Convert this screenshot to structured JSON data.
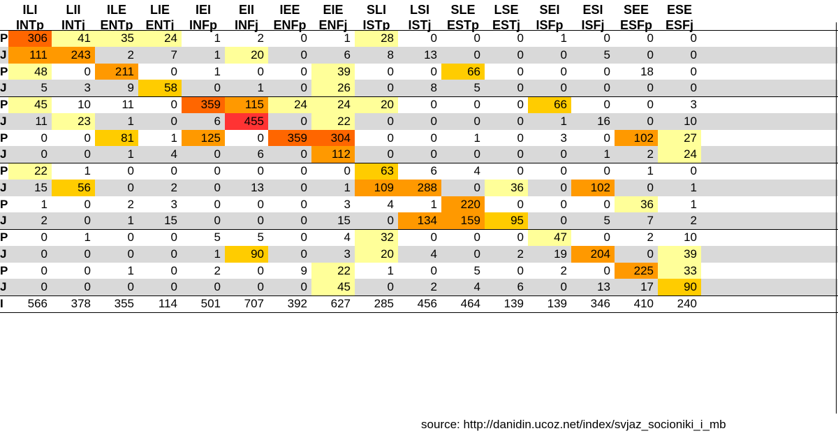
{
  "chart_data": {
    "type": "heatmap",
    "title": "",
    "columns": [
      {
        "code": "ILI",
        "type": "INTp"
      },
      {
        "code": "LII",
        "type": "INTj"
      },
      {
        "code": "ILE",
        "type": "ENTp"
      },
      {
        "code": "LIE",
        "type": "ENTj"
      },
      {
        "code": "IEI",
        "type": "INFp"
      },
      {
        "code": "EII",
        "type": "INFj"
      },
      {
        "code": "IEE",
        "type": "ENFp"
      },
      {
        "code": "EIE",
        "type": "ENFj"
      },
      {
        "code": "SLI",
        "type": "ISTp"
      },
      {
        "code": "LSI",
        "type": "ISTj"
      },
      {
        "code": "SLE",
        "type": "ESTp"
      },
      {
        "code": "LSE",
        "type": "ESTj"
      },
      {
        "code": "SEI",
        "type": "ISFp"
      },
      {
        "code": "ESI",
        "type": "ISFj"
      },
      {
        "code": "SEE",
        "type": "ESFp"
      },
      {
        "code": "ESE",
        "type": "ESFj"
      }
    ],
    "rows": [
      {
        "label": "P",
        "values": [
          306,
          41,
          35,
          24,
          1,
          2,
          0,
          1,
          28,
          0,
          0,
          0,
          1,
          0,
          0,
          0
        ]
      },
      {
        "label": "J",
        "values": [
          111,
          243,
          2,
          7,
          1,
          20,
          0,
          6,
          8,
          13,
          0,
          0,
          0,
          5,
          0,
          0
        ]
      },
      {
        "label": "P",
        "values": [
          48,
          0,
          211,
          0,
          1,
          0,
          0,
          39,
          0,
          0,
          66,
          0,
          0,
          0,
          18,
          0
        ]
      },
      {
        "label": "J",
        "values": [
          5,
          3,
          9,
          58,
          0,
          1,
          0,
          26,
          0,
          8,
          5,
          0,
          0,
          0,
          0,
          0
        ]
      },
      {
        "label": "P",
        "values": [
          45,
          10,
          11,
          0,
          359,
          115,
          24,
          24,
          20,
          0,
          0,
          0,
          66,
          0,
          0,
          3
        ]
      },
      {
        "label": "J",
        "values": [
          11,
          23,
          1,
          0,
          6,
          455,
          0,
          22,
          0,
          0,
          0,
          0,
          1,
          16,
          0,
          10
        ]
      },
      {
        "label": "P",
        "values": [
          0,
          0,
          81,
          1,
          125,
          0,
          359,
          304,
          0,
          0,
          1,
          0,
          3,
          0,
          102,
          27
        ]
      },
      {
        "label": "J",
        "values": [
          0,
          0,
          1,
          4,
          0,
          6,
          0,
          112,
          0,
          0,
          0,
          0,
          0,
          1,
          2,
          24
        ]
      },
      {
        "label": "P",
        "values": [
          22,
          1,
          0,
          0,
          0,
          0,
          0,
          0,
          63,
          6,
          4,
          0,
          0,
          0,
          1,
          0
        ]
      },
      {
        "label": "J",
        "values": [
          15,
          56,
          0,
          2,
          0,
          13,
          0,
          1,
          109,
          288,
          0,
          36,
          0,
          102,
          0,
          1
        ]
      },
      {
        "label": "P",
        "values": [
          1,
          0,
          2,
          3,
          0,
          0,
          0,
          3,
          4,
          1,
          220,
          0,
          0,
          0,
          36,
          1
        ]
      },
      {
        "label": "J",
        "values": [
          2,
          0,
          1,
          15,
          0,
          0,
          0,
          15,
          0,
          134,
          159,
          95,
          0,
          5,
          7,
          2
        ]
      },
      {
        "label": "P",
        "values": [
          0,
          1,
          0,
          0,
          5,
          5,
          0,
          4,
          32,
          0,
          0,
          0,
          47,
          0,
          2,
          10
        ]
      },
      {
        "label": "J",
        "values": [
          0,
          0,
          0,
          0,
          1,
          90,
          0,
          3,
          20,
          4,
          0,
          2,
          19,
          204,
          0,
          39
        ]
      },
      {
        "label": "P",
        "values": [
          0,
          0,
          1,
          0,
          2,
          0,
          9,
          22,
          1,
          0,
          5,
          0,
          2,
          0,
          225,
          33
        ]
      },
      {
        "label": "J",
        "values": [
          0,
          0,
          0,
          0,
          0,
          0,
          0,
          45,
          0,
          2,
          4,
          6,
          0,
          13,
          17,
          90
        ]
      }
    ],
    "totals": {
      "label": "I",
      "values": [
        566,
        378,
        355,
        114,
        501,
        707,
        392,
        627,
        285,
        456,
        464,
        139,
        139,
        346,
        410,
        240
      ]
    },
    "colors": {
      "band": "#d9d9d9",
      "low": "#ffff99",
      "mid": "#ffcc00",
      "high": "#ff9900",
      "higher": "#ff6600",
      "max": "#ff3333"
    }
  },
  "source_text": "source: http://danidin.ucoz.net/index/svjaz_socioniki_i_mb"
}
